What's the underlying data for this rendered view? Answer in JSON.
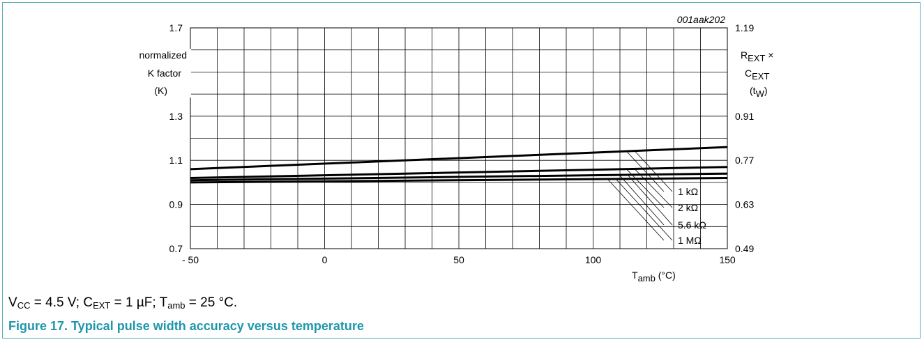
{
  "chart_data": {
    "type": "line",
    "figure_id": "001aak202",
    "x": [
      -50,
      150
    ],
    "xlim": [
      -50,
      150
    ],
    "x_ticks": [
      -50,
      0,
      50,
      100,
      150
    ],
    "x_tick_labels": [
      "- 50",
      "0",
      "50",
      "100",
      "150"
    ],
    "xlabel": {
      "main": "T",
      "sub": "amb",
      "unit": " (°C)"
    },
    "ylim": [
      0.7,
      1.7
    ],
    "y_ticks": [
      0.7,
      0.9,
      1.1,
      1.3,
      1.7
    ],
    "y_tick_labels": [
      "0.7",
      "0.9",
      "1.1",
      "1.3",
      "1.7"
    ],
    "ylabel": [
      "normalized",
      "K factor",
      "(K)"
    ],
    "y2_tick_labels": [
      "0.49",
      "0.63",
      "0.77",
      "0.91",
      "1.19"
    ],
    "y2label": {
      "line1_main": "R",
      "line1_sub": "EXT",
      "line1_tail": " ×",
      "line2_main": "C",
      "line2_sub": "EXT",
      "line3_open": "(t",
      "line3_sub": "W",
      "line3_close": ")"
    },
    "grid": true,
    "series": [
      {
        "name": "1 kΩ",
        "values": [
          1.06,
          1.16
        ]
      },
      {
        "name": "2 kΩ",
        "values": [
          1.02,
          1.07
        ]
      },
      {
        "name": "5.6 kΩ",
        "values": [
          1.01,
          1.04
        ]
      },
      {
        "name": "1 MΩ",
        "values": [
          1.0,
          1.02
        ]
      }
    ]
  },
  "note": {
    "v": "V",
    "v_sub": "CC",
    "v_val": " = 4.5 V; C",
    "c_sub": "EXT",
    "c_val": " = 1 µF; T",
    "t_sub": "amb",
    "t_val": " = 25 °C."
  },
  "caption": "Figure 17. Typical pulse width accuracy versus temperature",
  "colors": {
    "accent": "#1f97aa",
    "frame": "#5aa8b8",
    "lines": "#000000"
  }
}
